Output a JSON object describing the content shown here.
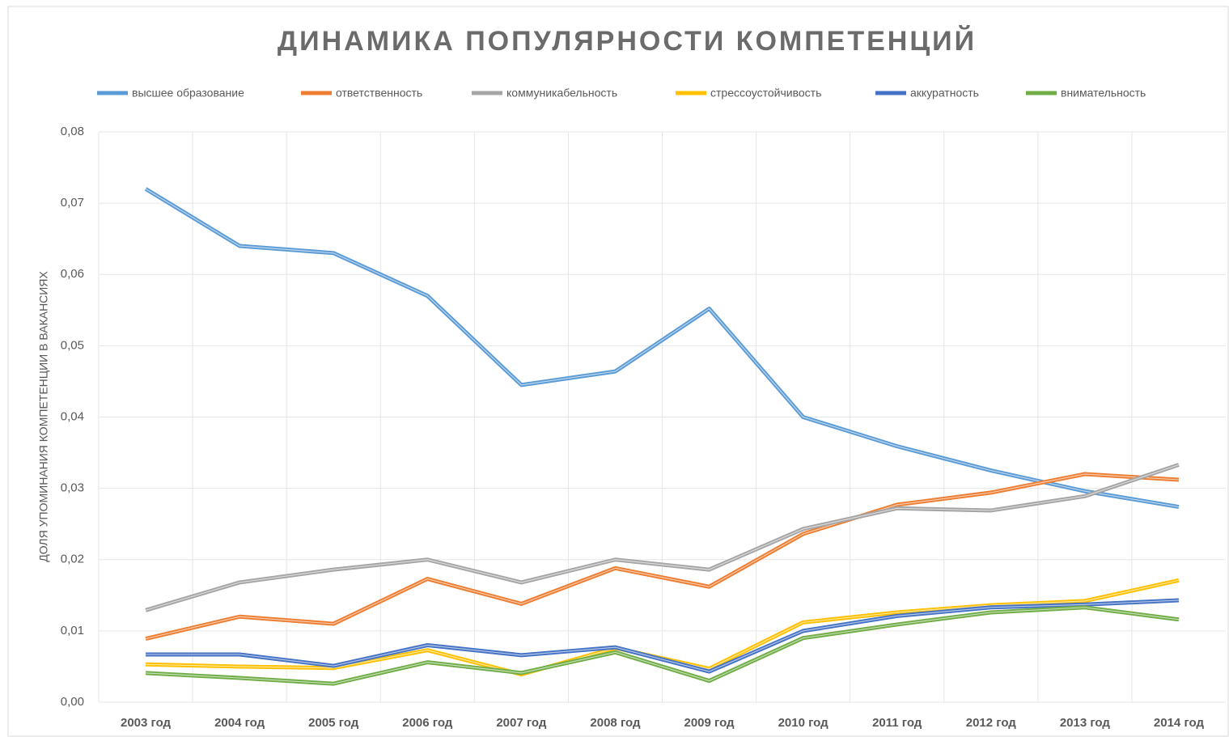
{
  "chart_data": {
    "type": "line",
    "title": "ДИНАМИКА ПОПУЛЯРНОСТИ КОМПЕТЕНЦИЙ",
    "y_label": "ДОЛЯ УПОМИНАНИЯ КОМПЕТЕНЦИИ В ВАКАНСИЯХ",
    "categories": [
      "2003 год",
      "2004 год",
      "2005 год",
      "2006 год",
      "2007 год",
      "2008 год",
      "2009 год",
      "2010 год",
      "2011 год",
      "2012 год",
      "2013 год",
      "2014 год"
    ],
    "series": [
      {
        "name": "высшее образование",
        "color": "#5b9bd5",
        "values": [
          0.072,
          0.064,
          0.063,
          0.057,
          0.0445,
          0.0464,
          0.0552,
          0.04,
          0.0359,
          0.0325,
          0.0296,
          0.0274
        ]
      },
      {
        "name": "ответственность",
        "color": "#ed7d31",
        "values": [
          0.0089,
          0.012,
          0.011,
          0.0173,
          0.0138,
          0.0188,
          0.0162,
          0.0236,
          0.0277,
          0.0294,
          0.032,
          0.0312
        ]
      },
      {
        "name": "коммуникабельность",
        "color": "#a5a5a5",
        "values": [
          0.0129,
          0.0168,
          0.0186,
          0.02,
          0.0168,
          0.02,
          0.0186,
          0.0243,
          0.0272,
          0.0269,
          0.0289,
          0.0333
        ]
      },
      {
        "name": "стрессоустойчивость",
        "color": "#ffc000",
        "values": [
          0.0053,
          0.005,
          0.0048,
          0.0073,
          0.0039,
          0.0076,
          0.0047,
          0.0112,
          0.0126,
          0.0136,
          0.0142,
          0.0171
        ]
      },
      {
        "name": "аккуратность",
        "color": "#4472c4",
        "values": [
          0.0067,
          0.0067,
          0.0051,
          0.008,
          0.0066,
          0.0077,
          0.0043,
          0.01,
          0.0121,
          0.0133,
          0.0137,
          0.0143
        ]
      },
      {
        "name": "внимательность",
        "color": "#70ad47",
        "values": [
          0.0041,
          0.0034,
          0.0026,
          0.0056,
          0.0041,
          0.007,
          0.003,
          0.009,
          0.0109,
          0.0126,
          0.0133,
          0.0116
        ]
      }
    ],
    "ylim": [
      0,
      0.08
    ],
    "yticks": [
      {
        "value": 0,
        "label": "0,00"
      },
      {
        "value": 0.01,
        "label": "0,01"
      },
      {
        "value": 0.02,
        "label": "0,02"
      },
      {
        "value": 0.03,
        "label": "0,03"
      },
      {
        "value": 0.04,
        "label": "0,04"
      },
      {
        "value": 0.05,
        "label": "0,05"
      },
      {
        "value": 0.06,
        "label": "0,06"
      },
      {
        "value": 0.07,
        "label": "0,07"
      },
      {
        "value": 0.08,
        "label": "0,08"
      }
    ],
    "grid": true,
    "legend": "top"
  }
}
